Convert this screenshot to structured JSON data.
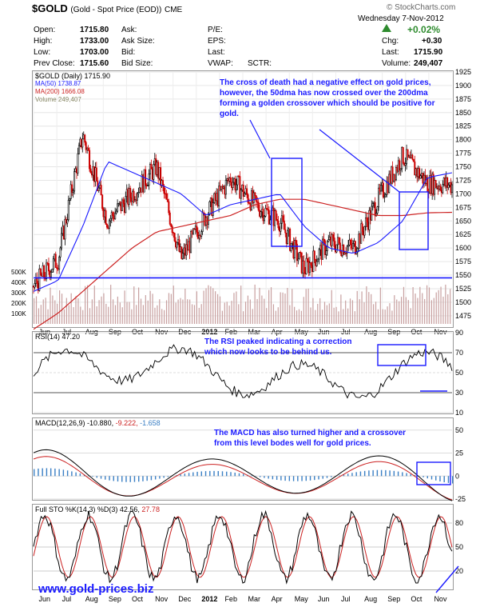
{
  "header": {
    "symbol": "$GOLD",
    "name": "(Gold - Spot Price (EOD))",
    "exchange": "CME",
    "source": "© StockCharts.com",
    "date": "Wednesday  7-Nov-2012",
    "open_label": "Open:",
    "open": "1715.80",
    "high_label": "High:",
    "high": "1733.00",
    "low_label": "Low:",
    "low": "1703.00",
    "prev_label": "Prev Close:",
    "prev": "1715.60",
    "ask_label": "Ask:",
    "asksize_label": "Ask Size:",
    "bid_label": "Bid:",
    "bidsize_label": "Bid Size:",
    "pe_label": "P/E:",
    "eps_label": "EPS:",
    "last_label": "Last:",
    "vwap_label": "VWAP:",
    "sctr_label": "SCTR:",
    "change_pct": "+0.02%",
    "chg_label": "Chg:",
    "chg": "+0.30",
    "last2_label": "Last:",
    "last": "1715.90",
    "volume_label": "Volume:",
    "volume": "249,407"
  },
  "legend": {
    "price": "$GOLD (Daily) 1715.90",
    "ma50": "MA(50) 1738.87",
    "ma200": "MA(200) 1666.08",
    "vol": "Volume 249,407",
    "rsi": "RSI(14) 47.20",
    "macd_label": "MACD(12,26,9)",
    "macd_v1": "-10.880,",
    "macd_v2": "-9.222,",
    "macd_v3": "-1.658",
    "sto_label": "Full STO %K(14,3) %D(3)",
    "sto_v1": "42.56,",
    "sto_v2": "27.78"
  },
  "notes": {
    "main": "The cross of death had a negative effect on gold prices, however, the 50dma has now crossed over the 200dma forming a golden crossover which should be positive for gold.",
    "rsi": "The RSI peaked indicating a correction which now looks to be behind us.",
    "macd": "The MACD has also turned higher and a crossover from this level bodes well for gold prices."
  },
  "website": "www.gold-prices.biz",
  "colors": {
    "up": "#000000",
    "down": "#cc0000",
    "ma50": "#1a1aff",
    "ma200": "#cc2222",
    "volume": "#c8a0a0",
    "rsi_fill": "#6b8e4e",
    "note": "#1a1aff",
    "hist": "#3a7fc4"
  },
  "chart_data": [
    {
      "type": "candlestick",
      "title": "$GOLD (Daily)",
      "x": [
        "Jun",
        "Jul",
        "Aug",
        "Sep",
        "Oct",
        "Nov",
        "Dec",
        "2012",
        "Feb",
        "Mar",
        "Apr",
        "May",
        "Jun",
        "Jul",
        "Aug",
        "Sep",
        "Oct",
        "Nov"
      ],
      "close_monthly_approx": [
        1530,
        1580,
        1810,
        1650,
        1700,
        1750,
        1580,
        1660,
        1730,
        1680,
        1650,
        1560,
        1610,
        1600,
        1690,
        1770,
        1720,
        1716
      ],
      "ma50_monthly_approx": [
        1520,
        1540,
        1640,
        1760,
        1740,
        1720,
        1700,
        1660,
        1680,
        1690,
        1700,
        1640,
        1600,
        1590,
        1610,
        1650,
        1730,
        1739
      ],
      "ma200_monthly_approx": [
        1450,
        1480,
        1520,
        1560,
        1600,
        1630,
        1640,
        1650,
        1660,
        1680,
        1690,
        1690,
        1680,
        1670,
        1660,
        1660,
        1665,
        1666
      ],
      "ylim": [
        1460,
        1925
      ],
      "y_ticks": [
        1475,
        1500,
        1525,
        1550,
        1575,
        1600,
        1625,
        1650,
        1675,
        1700,
        1725,
        1750,
        1775,
        1800,
        1825,
        1850,
        1875,
        1900,
        1925
      ],
      "horizontal_line": 1545
    },
    {
      "type": "bar",
      "title": "Volume",
      "y_ticks": [
        "100K",
        "200K",
        "300K",
        "400K",
        "500K"
      ]
    },
    {
      "type": "line",
      "title": "RSI(14)",
      "value": 47.2,
      "ylim": [
        10,
        90
      ],
      "y_ticks": [
        10,
        30,
        50,
        70,
        90
      ]
    },
    {
      "type": "line",
      "title": "MACD(12,26,9)",
      "values": [
        -10.88,
        -9.222,
        -1.658
      ],
      "ylim": [
        -25,
        50
      ],
      "y_ticks": [
        -25,
        0,
        25,
        50
      ]
    },
    {
      "type": "line",
      "title": "Full STO %K(14,3) %D(3)",
      "values": [
        42.56,
        27.78
      ],
      "ylim": [
        0,
        100
      ],
      "y_ticks": [
        20,
        50,
        80
      ]
    }
  ]
}
